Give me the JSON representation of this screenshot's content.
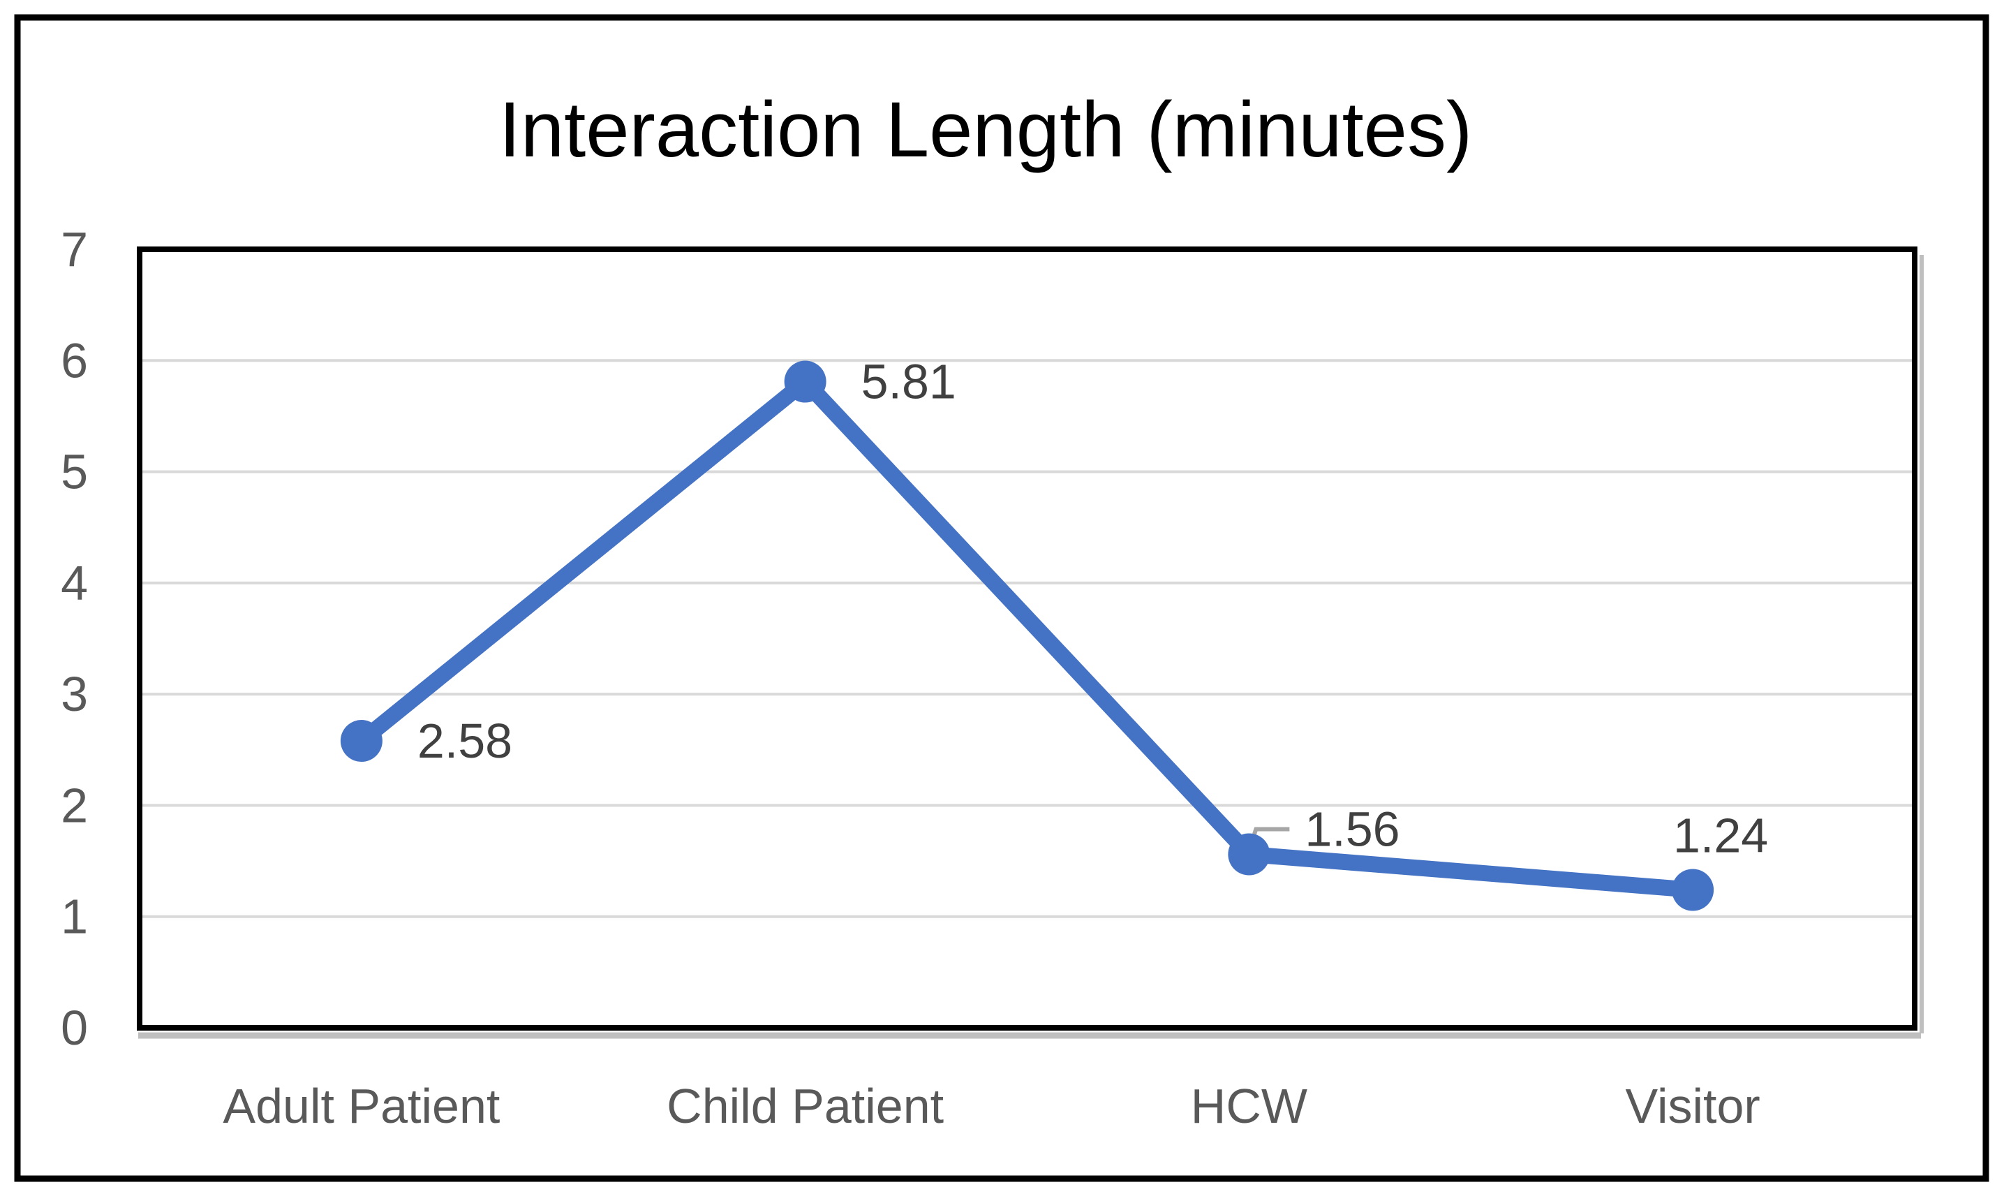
{
  "chart_data": {
    "type": "line",
    "title": "Interaction Length (minutes)",
    "categories": [
      "Adult Patient",
      "Child Patient",
      "HCW",
      "Visitor"
    ],
    "values": [
      2.58,
      5.81,
      1.56,
      1.24
    ],
    "data_labels": [
      "2.58",
      "5.81",
      "1.56",
      "1.24"
    ],
    "label_placements": [
      "right",
      "right",
      "leader-up-right",
      "above"
    ],
    "xlabel": "",
    "ylabel": "",
    "ylim": [
      0,
      7
    ],
    "yticks": [
      0,
      1,
      2,
      3,
      4,
      5,
      6,
      7
    ],
    "grid": true,
    "legend": "none",
    "colors": {
      "line": "#4472C4",
      "marker": "#4472C4",
      "gridline": "#D9D9D9",
      "axis_tick_label": "#595959",
      "category_label": "#595959",
      "data_label": "#404040",
      "title": "#000000",
      "plot_border": "#000000",
      "plot_shadow": "#BFBFBF",
      "leader_line": "#A6A6A6",
      "outer_border": "#000000"
    }
  }
}
